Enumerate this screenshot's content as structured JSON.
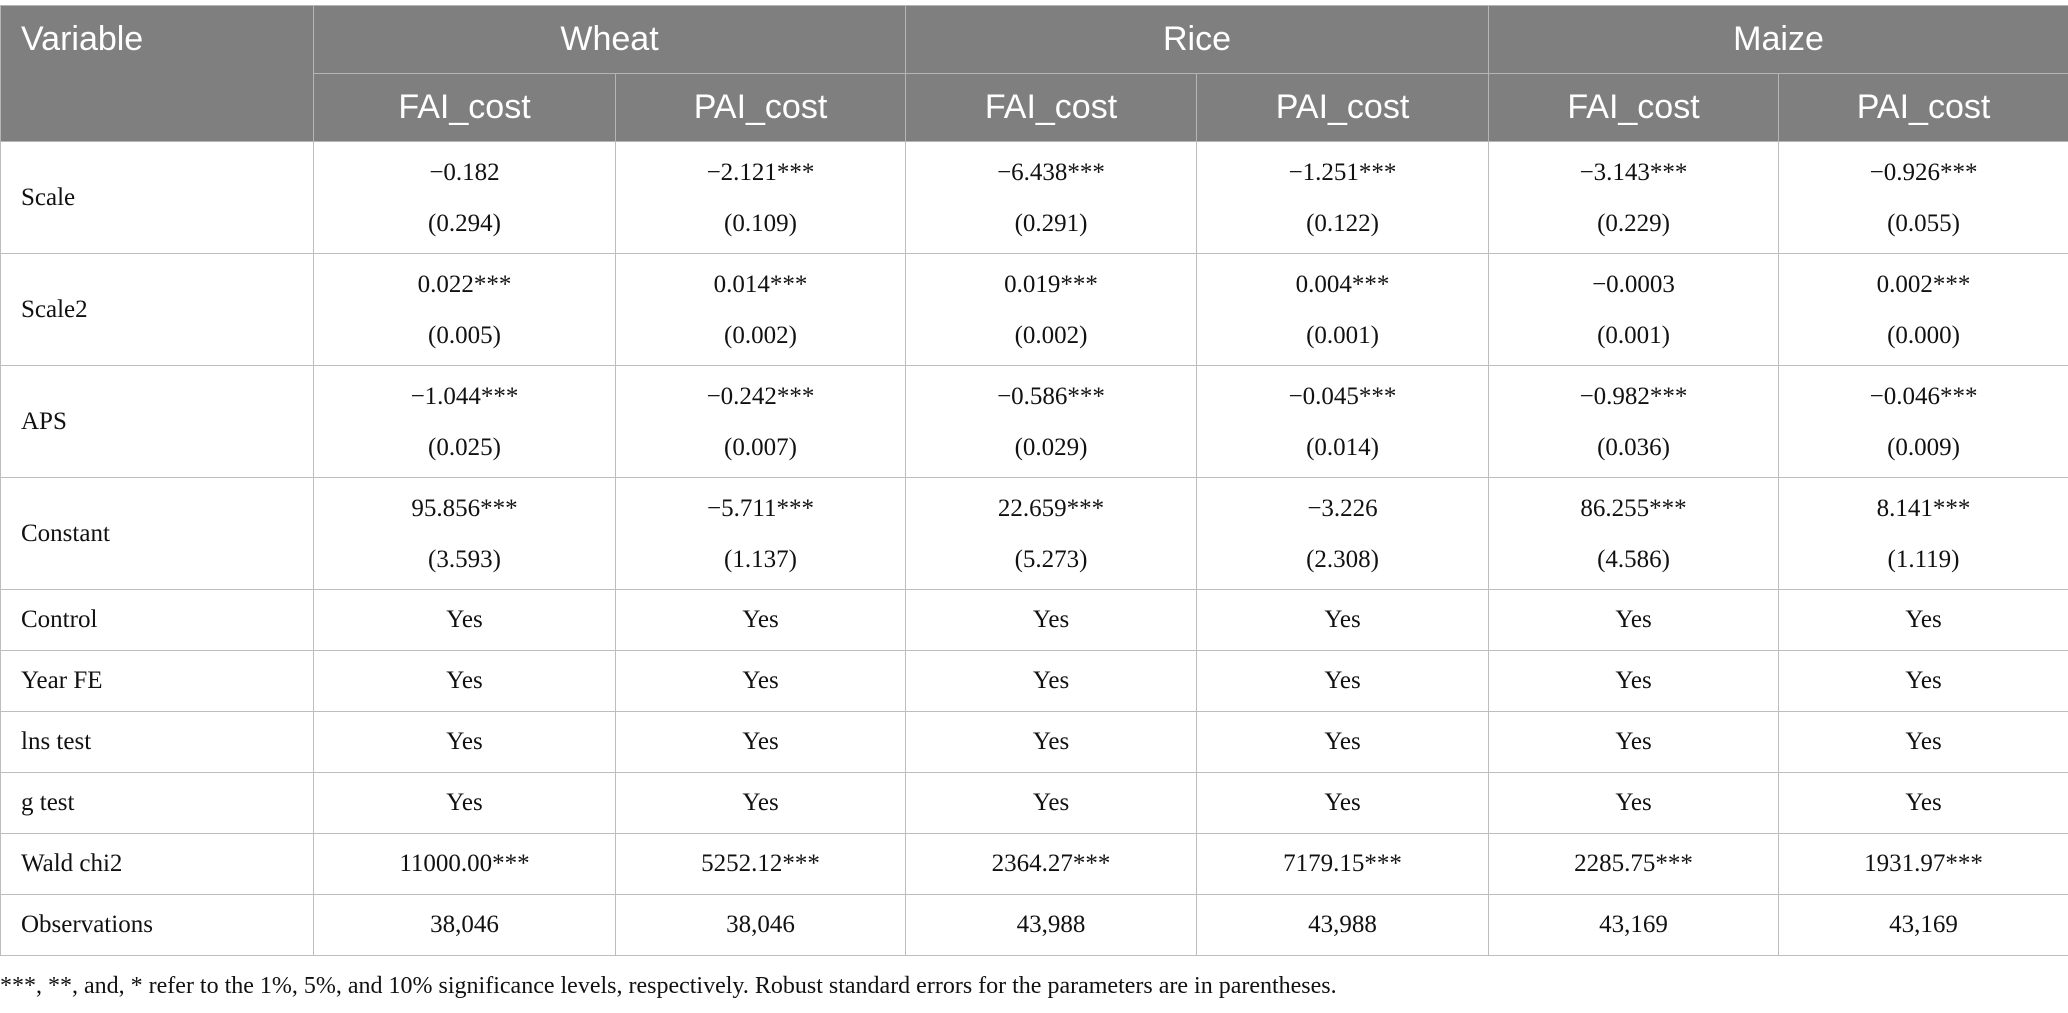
{
  "table": {
    "header": {
      "variable": "Variable",
      "groups": [
        "Wheat",
        "Rice",
        "Maize"
      ],
      "subheaders": [
        "FAI_cost",
        "PAI_cost",
        "FAI_cost",
        "PAI_cost",
        "FAI_cost",
        "PAI_cost"
      ]
    },
    "rows": [
      {
        "label": "Scale",
        "cells": [
          [
            "−0.182",
            "(0.294)"
          ],
          [
            "−2.121***",
            "(0.109)"
          ],
          [
            "−6.438***",
            "(0.291)"
          ],
          [
            "−1.251***",
            "(0.122)"
          ],
          [
            "−3.143***",
            "(0.229)"
          ],
          [
            "−0.926***",
            "(0.055)"
          ]
        ]
      },
      {
        "label": "Scale2",
        "cells": [
          [
            "0.022***",
            "(0.005)"
          ],
          [
            "0.014***",
            "(0.002)"
          ],
          [
            "0.019***",
            "(0.002)"
          ],
          [
            "0.004***",
            "(0.001)"
          ],
          [
            "−0.0003",
            "(0.001)"
          ],
          [
            "0.002***",
            "(0.000)"
          ]
        ]
      },
      {
        "label": "APS",
        "cells": [
          [
            "−1.044***",
            "(0.025)"
          ],
          [
            "−0.242***",
            "(0.007)"
          ],
          [
            "−0.586***",
            "(0.029)"
          ],
          [
            "−0.045***",
            "(0.014)"
          ],
          [
            "−0.982***",
            "(0.036)"
          ],
          [
            "−0.046***",
            "(0.009)"
          ]
        ]
      },
      {
        "label": "Constant",
        "cells": [
          [
            "95.856***",
            "(3.593)"
          ],
          [
            "−5.711***",
            "(1.137)"
          ],
          [
            "22.659***",
            "(5.273)"
          ],
          [
            "−3.226",
            "(2.308)"
          ],
          [
            "86.255***",
            "(4.586)"
          ],
          [
            "8.141***",
            "(1.119)"
          ]
        ]
      },
      {
        "label": "Control",
        "cells": [
          "Yes",
          "Yes",
          "Yes",
          "Yes",
          "Yes",
          "Yes"
        ]
      },
      {
        "label": "Year FE",
        "cells": [
          "Yes",
          "Yes",
          "Yes",
          "Yes",
          "Yes",
          "Yes"
        ]
      },
      {
        "label": "lns test",
        "cells": [
          "Yes",
          "Yes",
          "Yes",
          "Yes",
          "Yes",
          "Yes"
        ]
      },
      {
        "label": "g test",
        "cells": [
          "Yes",
          "Yes",
          "Yes",
          "Yes",
          "Yes",
          "Yes"
        ]
      },
      {
        "label": "Wald chi2",
        "cells": [
          "11000.00***",
          "5252.12***",
          "2364.27***",
          "7179.15***",
          "2285.75***",
          "1931.97***"
        ]
      },
      {
        "label": "Observations",
        "cells": [
          "38,046",
          "38,046",
          "43,988",
          "43,988",
          "43,169",
          "43,169"
        ]
      }
    ],
    "footnote": "***, **, and, * refer to the 1%, 5%, and 10% significance levels, respectively. Robust standard errors for the parameters are in parentheses."
  }
}
